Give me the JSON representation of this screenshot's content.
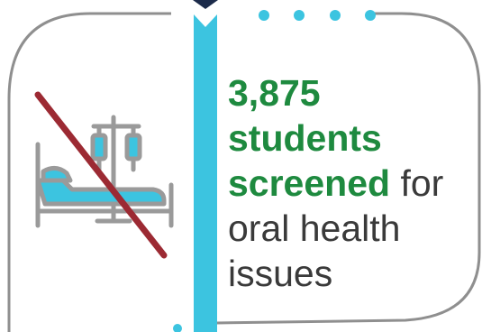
{
  "stat": {
    "number": "3,875",
    "highlight_word": "students",
    "highlight_word2": "screened",
    "rest_inline": "for",
    "line4": "oral health",
    "line5": "issues"
  },
  "colors": {
    "frame": "#8f8f8f",
    "accent_bar": "#3cc4e0",
    "navy": "#1c2b4a",
    "highlight": "#1e8a3f",
    "strike": "#9c2a33",
    "icon_gray": "#9a9a9a",
    "icon_blue": "#3cc4e0"
  },
  "icons": {
    "hospital_bed": "hospital-bed-icon",
    "no_symbol": "strike-line"
  }
}
